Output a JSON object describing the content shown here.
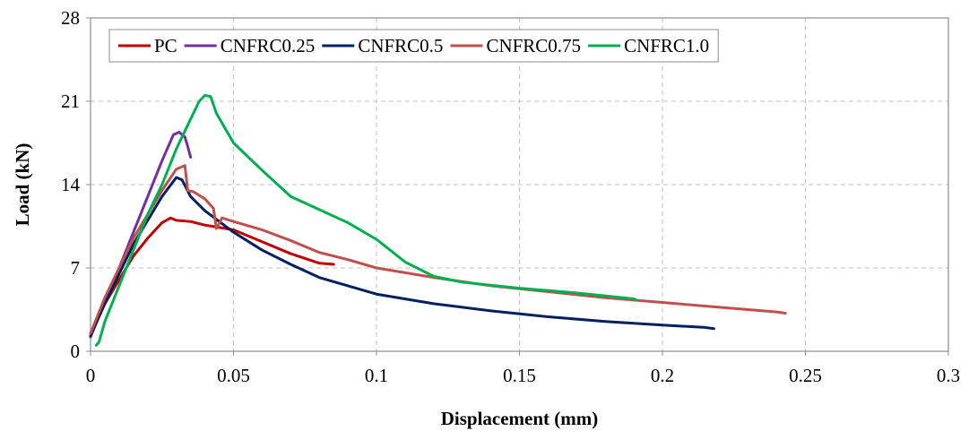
{
  "chart_data": {
    "type": "line",
    "title": "",
    "xlabel": "Displacement (mm)",
    "ylabel": "Load (kN)",
    "xlim": [
      0,
      0.3
    ],
    "ylim": [
      0,
      28
    ],
    "xticks": [
      "0",
      "0.05",
      "0.1",
      "0.15",
      "0.2",
      "0.25",
      "0.3"
    ],
    "yticks": [
      "0",
      "7",
      "14",
      "21",
      "28"
    ],
    "grid": true,
    "legend_position": "top",
    "series": [
      {
        "name": "PC",
        "color": "#c00000",
        "points": [
          [
            0,
            1.5
          ],
          [
            0.005,
            4.0
          ],
          [
            0.01,
            6.0
          ],
          [
            0.015,
            8.0
          ],
          [
            0.02,
            9.5
          ],
          [
            0.025,
            10.8
          ],
          [
            0.028,
            11.2
          ],
          [
            0.03,
            11.0
          ],
          [
            0.035,
            10.9
          ],
          [
            0.04,
            10.6
          ],
          [
            0.05,
            10.2
          ],
          [
            0.06,
            9.2
          ],
          [
            0.07,
            8.2
          ],
          [
            0.08,
            7.4
          ],
          [
            0.085,
            7.3
          ]
        ]
      },
      {
        "name": "CNFRC0.25",
        "color": "#7030a0",
        "points": [
          [
            0,
            1.2
          ],
          [
            0.005,
            4.2
          ],
          [
            0.01,
            7.0
          ],
          [
            0.015,
            10.0
          ],
          [
            0.02,
            13.0
          ],
          [
            0.025,
            16.0
          ],
          [
            0.029,
            18.2
          ],
          [
            0.031,
            18.4
          ],
          [
            0.033,
            18.0
          ],
          [
            0.034,
            17.2
          ],
          [
            0.035,
            16.3
          ]
        ]
      },
      {
        "name": "CNFRC0.5",
        "color": "#002060",
        "points": [
          [
            0,
            1.3
          ],
          [
            0.005,
            4.0
          ],
          [
            0.01,
            6.5
          ],
          [
            0.015,
            9.0
          ],
          [
            0.02,
            11.0
          ],
          [
            0.025,
            13.0
          ],
          [
            0.03,
            14.6
          ],
          [
            0.032,
            14.4
          ],
          [
            0.035,
            13.0
          ],
          [
            0.04,
            11.8
          ],
          [
            0.05,
            10.0
          ],
          [
            0.06,
            8.5
          ],
          [
            0.07,
            7.3
          ],
          [
            0.08,
            6.2
          ],
          [
            0.09,
            5.5
          ],
          [
            0.1,
            4.8
          ],
          [
            0.12,
            4.0
          ],
          [
            0.14,
            3.4
          ],
          [
            0.16,
            2.9
          ],
          [
            0.18,
            2.5
          ],
          [
            0.2,
            2.2
          ],
          [
            0.215,
            2.0
          ],
          [
            0.218,
            1.9
          ]
        ]
      },
      {
        "name": "CNFRC0.75",
        "color": "#c0504d",
        "points": [
          [
            0,
            1.5
          ],
          [
            0.005,
            4.5
          ],
          [
            0.01,
            7.0
          ],
          [
            0.015,
            9.5
          ],
          [
            0.02,
            11.5
          ],
          [
            0.025,
            13.5
          ],
          [
            0.03,
            15.3
          ],
          [
            0.033,
            15.6
          ],
          [
            0.034,
            13.5
          ],
          [
            0.036,
            13.4
          ],
          [
            0.04,
            12.8
          ],
          [
            0.043,
            12.0
          ],
          [
            0.044,
            10.3
          ],
          [
            0.046,
            11.2
          ],
          [
            0.05,
            10.9
          ],
          [
            0.06,
            10.2
          ],
          [
            0.07,
            9.3
          ],
          [
            0.08,
            8.3
          ],
          [
            0.09,
            7.7
          ],
          [
            0.1,
            7.0
          ],
          [
            0.12,
            6.2
          ],
          [
            0.14,
            5.5
          ],
          [
            0.16,
            5.0
          ],
          [
            0.18,
            4.5
          ],
          [
            0.2,
            4.1
          ],
          [
            0.22,
            3.7
          ],
          [
            0.24,
            3.3
          ],
          [
            0.243,
            3.2
          ]
        ]
      },
      {
        "name": "CNFRC1.0",
        "color": "#00b050",
        "points": [
          [
            0.002,
            0.5
          ],
          [
            0.003,
            0.8
          ],
          [
            0.005,
            2.5
          ],
          [
            0.01,
            5.5
          ],
          [
            0.015,
            8.5
          ],
          [
            0.02,
            11.5
          ],
          [
            0.025,
            14.0
          ],
          [
            0.03,
            17.0
          ],
          [
            0.035,
            19.5
          ],
          [
            0.038,
            21.0
          ],
          [
            0.04,
            21.5
          ],
          [
            0.042,
            21.4
          ],
          [
            0.044,
            20.0
          ],
          [
            0.05,
            17.5
          ],
          [
            0.06,
            15.2
          ],
          [
            0.07,
            13.0
          ],
          [
            0.08,
            11.9
          ],
          [
            0.09,
            10.8
          ],
          [
            0.1,
            9.4
          ],
          [
            0.11,
            7.5
          ],
          [
            0.12,
            6.3
          ],
          [
            0.13,
            5.8
          ],
          [
            0.15,
            5.3
          ],
          [
            0.17,
            4.9
          ],
          [
            0.19,
            4.4
          ],
          [
            0.191,
            4.3
          ]
        ]
      }
    ]
  }
}
